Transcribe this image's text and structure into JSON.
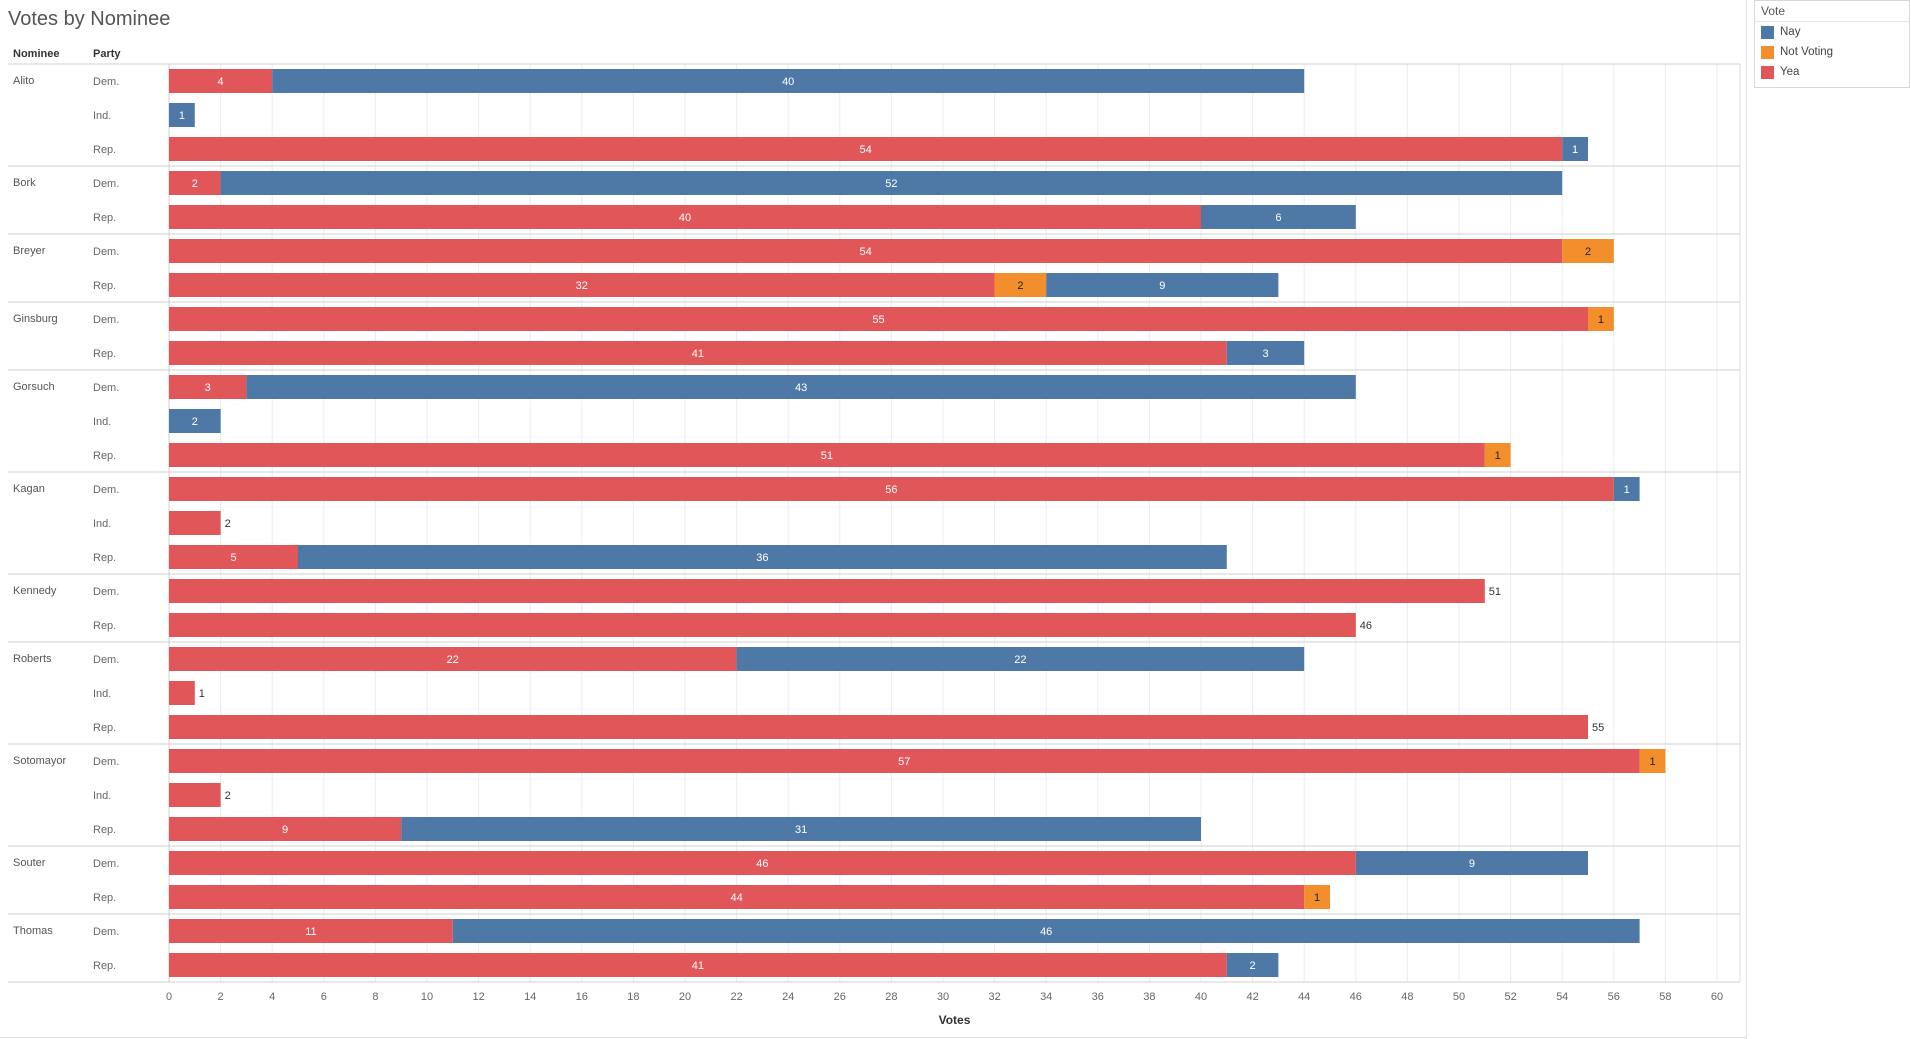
{
  "title": "Votes by Nominee",
  "headers": {
    "nominee": "Nominee",
    "party": "Party"
  },
  "legend": {
    "title": "Vote",
    "items": [
      {
        "label": "Nay",
        "color": "#4e79a7"
      },
      {
        "label": "Not Voting",
        "color": "#f28e2b"
      },
      {
        "label": "Yea",
        "color": "#e15759"
      }
    ]
  },
  "chart_data": {
    "type": "bar",
    "orientation": "horizontal",
    "stacked": true,
    "xlabel": "Votes",
    "xlim": [
      0,
      61
    ],
    "xticks": [
      0,
      2,
      4,
      6,
      8,
      10,
      12,
      14,
      16,
      18,
      20,
      22,
      24,
      26,
      28,
      30,
      32,
      34,
      36,
      38,
      40,
      42,
      44,
      46,
      48,
      50,
      52,
      54,
      56,
      58,
      60
    ],
    "grid": true,
    "legend_position": "top-right",
    "series_order": [
      "Yea",
      "Not Voting",
      "Nay"
    ],
    "colors": {
      "Yea": "#e15759",
      "Not Voting": "#f28e2b",
      "Nay": "#4e79a7"
    },
    "groups": [
      {
        "nominee": "Alito",
        "rows": [
          {
            "party": "Dem.",
            "Yea": 4,
            "Not Voting": 0,
            "Nay": 40
          },
          {
            "party": "Ind.",
            "Yea": 0,
            "Not Voting": 0,
            "Nay": 1
          },
          {
            "party": "Rep.",
            "Yea": 54,
            "Not Voting": 0,
            "Nay": 1
          }
        ]
      },
      {
        "nominee": "Bork",
        "rows": [
          {
            "party": "Dem.",
            "Yea": 2,
            "Not Voting": 0,
            "Nay": 52
          },
          {
            "party": "Rep.",
            "Yea": 40,
            "Not Voting": 0,
            "Nay": 6
          }
        ]
      },
      {
        "nominee": "Breyer",
        "rows": [
          {
            "party": "Dem.",
            "Yea": 54,
            "Not Voting": 2,
            "Nay": 0
          },
          {
            "party": "Rep.",
            "Yea": 32,
            "Not Voting": 2,
            "Nay": 9
          }
        ]
      },
      {
        "nominee": "Ginsburg",
        "rows": [
          {
            "party": "Dem.",
            "Yea": 55,
            "Not Voting": 1,
            "Nay": 0
          },
          {
            "party": "Rep.",
            "Yea": 41,
            "Not Voting": 0,
            "Nay": 3
          }
        ]
      },
      {
        "nominee": "Gorsuch",
        "rows": [
          {
            "party": "Dem.",
            "Yea": 3,
            "Not Voting": 0,
            "Nay": 43
          },
          {
            "party": "Ind.",
            "Yea": 0,
            "Not Voting": 0,
            "Nay": 2
          },
          {
            "party": "Rep.",
            "Yea": 51,
            "Not Voting": 1,
            "Nay": 0
          }
        ]
      },
      {
        "nominee": "Kagan",
        "rows": [
          {
            "party": "Dem.",
            "Yea": 56,
            "Not Voting": 0,
            "Nay": 1
          },
          {
            "party": "Ind.",
            "Yea": 2,
            "Not Voting": 0,
            "Nay": 0
          },
          {
            "party": "Rep.",
            "Yea": 5,
            "Not Voting": 0,
            "Nay": 36
          }
        ]
      },
      {
        "nominee": "Kennedy",
        "rows": [
          {
            "party": "Dem.",
            "Yea": 51,
            "Not Voting": 0,
            "Nay": 0
          },
          {
            "party": "Rep.",
            "Yea": 46,
            "Not Voting": 0,
            "Nay": 0
          }
        ]
      },
      {
        "nominee": "Roberts",
        "rows": [
          {
            "party": "Dem.",
            "Yea": 22,
            "Not Voting": 0,
            "Nay": 22
          },
          {
            "party": "Ind.",
            "Yea": 1,
            "Not Voting": 0,
            "Nay": 0
          },
          {
            "party": "Rep.",
            "Yea": 55,
            "Not Voting": 0,
            "Nay": 0
          }
        ]
      },
      {
        "nominee": "Sotomayor",
        "rows": [
          {
            "party": "Dem.",
            "Yea": 57,
            "Not Voting": 1,
            "Nay": 0
          },
          {
            "party": "Ind.",
            "Yea": 2,
            "Not Voting": 0,
            "Nay": 0
          },
          {
            "party": "Rep.",
            "Yea": 9,
            "Not Voting": 0,
            "Nay": 31
          }
        ]
      },
      {
        "nominee": "Souter",
        "rows": [
          {
            "party": "Dem.",
            "Yea": 46,
            "Not Voting": 0,
            "Nay": 9
          },
          {
            "party": "Rep.",
            "Yea": 44,
            "Not Voting": 1,
            "Nay": 0
          }
        ]
      },
      {
        "nominee": "Thomas",
        "rows": [
          {
            "party": "Dem.",
            "Yea": 11,
            "Not Voting": 0,
            "Nay": 46
          },
          {
            "party": "Rep.",
            "Yea": 41,
            "Not Voting": 0,
            "Nay": 2
          }
        ]
      }
    ]
  }
}
